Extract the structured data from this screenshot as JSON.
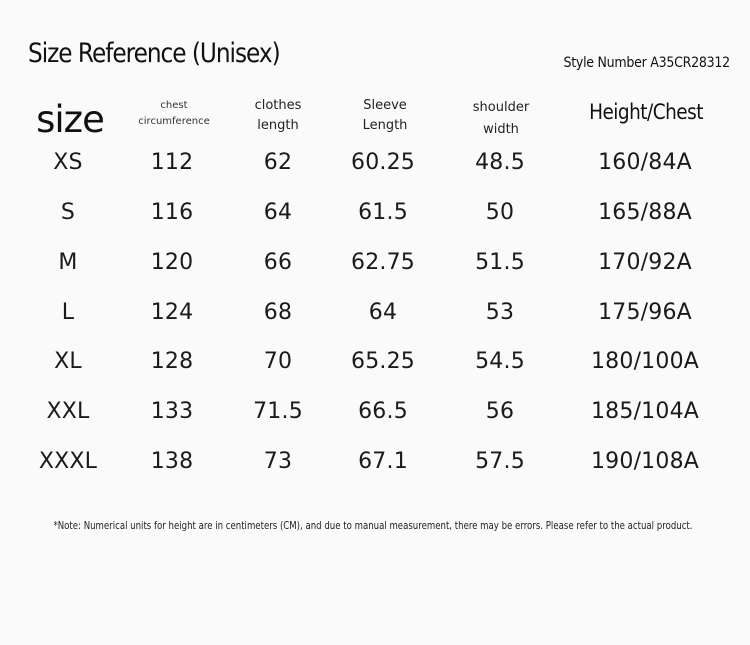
{
  "title": "Size Reference (Unisex)",
  "style_number": "Style Number A35CR28312",
  "headers": {
    "size": "size",
    "chest_line1": "chest",
    "chest_line2": "circumference",
    "clothes_line1": "clothes",
    "clothes_line2": "length",
    "sleeve_line1": "Sleeve",
    "sleeve_line2": "Length",
    "shoulder_line1": "shoulder",
    "shoulder_line2": "width",
    "height_chest": "Height/Chest"
  },
  "rows": [
    {
      "size": "XS",
      "chest": "112",
      "length": "62",
      "sleeve": "60.25",
      "shoulder": "48.5",
      "hc": "160/84A"
    },
    {
      "size": "S",
      "chest": "116",
      "length": "64",
      "sleeve": "61.5",
      "shoulder": "50",
      "hc": "165/88A"
    },
    {
      "size": "M",
      "chest": "120",
      "length": "66",
      "sleeve": "62.75",
      "shoulder": "51.5",
      "hc": "170/92A"
    },
    {
      "size": "L",
      "chest": "124",
      "length": "68",
      "sleeve": "64",
      "shoulder": "53",
      "hc": "175/96A"
    },
    {
      "size": "XL",
      "chest": "128",
      "length": "70",
      "sleeve": "65.25",
      "shoulder": "54.5",
      "hc": "180/100A"
    },
    {
      "size": "XXL",
      "chest": "133",
      "length": "71.5",
      "sleeve": "66.5",
      "shoulder": "56",
      "hc": "185/104A"
    },
    {
      "size": "XXXL",
      "chest": "138",
      "length": "73",
      "sleeve": "67.1",
      "shoulder": "57.5",
      "hc": "190/108A"
    }
  ],
  "note": "*Note: Numerical units for height are in centimeters (CM), and due to manual measurement, there may be errors. Please refer to the actual product."
}
